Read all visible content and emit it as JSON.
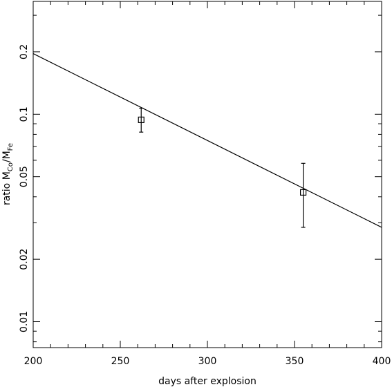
{
  "chart_data": {
    "type": "scatter",
    "title": "",
    "xlabel": "days after explosion",
    "ylabel": {
      "prefix": "ratio M",
      "sub1": "Co",
      "mid": "/M",
      "sub2": "Fe"
    },
    "xlim": [
      200,
      400
    ],
    "ylim": [
      0.0075,
      0.35
    ],
    "yscale": "log",
    "grid": false,
    "x_ticks": [
      200,
      250,
      300,
      350,
      400
    ],
    "x_tick_labels": [
      "200",
      "250",
      "300",
      "350",
      "400"
    ],
    "y_ticks": [
      0.01,
      0.02,
      0.05,
      0.1,
      0.2
    ],
    "y_tick_labels": [
      "0.01",
      "0.02",
      "0.05",
      "0.1",
      "0.2"
    ],
    "series": [
      {
        "type": "line",
        "x": [
          200,
          400
        ],
        "y": [
          0.196,
          0.0285
        ]
      },
      {
        "type": "scatter",
        "points": [
          {
            "x": 262,
            "y": 0.094,
            "y_low": 0.082,
            "y_high": 0.107
          },
          {
            "x": 355,
            "y": 0.042,
            "y_low": 0.0285,
            "y_high": 0.058
          }
        ]
      }
    ]
  }
}
